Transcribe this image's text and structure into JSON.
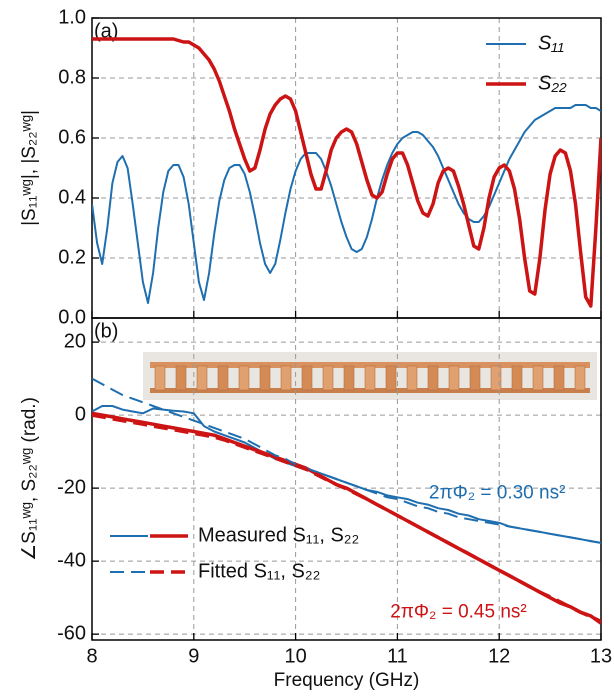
{
  "chart_data": [
    {
      "type": "line",
      "panel_label": "(a)",
      "ylabel": "|S₁₁ʷᵍ|, |S₂₂ʷᵍ|",
      "legend_position": "upper right",
      "grid": true,
      "x": [
        8.0,
        8.05,
        8.1,
        8.15,
        8.2,
        8.25,
        8.3,
        8.35,
        8.4,
        8.45,
        8.5,
        8.55,
        8.6,
        8.65,
        8.7,
        8.75,
        8.8,
        8.85,
        8.9,
        8.95,
        9.0,
        9.05,
        9.1,
        9.15,
        9.2,
        9.25,
        9.3,
        9.35,
        9.4,
        9.45,
        9.5,
        9.55,
        9.6,
        9.65,
        9.7,
        9.75,
        9.8,
        9.85,
        9.9,
        9.95,
        10.0,
        10.05,
        10.1,
        10.15,
        10.2,
        10.25,
        10.3,
        10.35,
        10.4,
        10.45,
        10.5,
        10.55,
        10.6,
        10.65,
        10.7,
        10.75,
        10.8,
        10.85,
        10.9,
        10.95,
        11.0,
        11.05,
        11.1,
        11.15,
        11.2,
        11.25,
        11.3,
        11.35,
        11.4,
        11.45,
        11.5,
        11.55,
        11.6,
        11.65,
        11.7,
        11.75,
        11.8,
        11.85,
        11.9,
        11.95,
        12.0,
        12.05,
        12.1,
        12.15,
        12.2,
        12.25,
        12.3,
        12.35,
        12.4,
        12.45,
        12.5,
        12.55,
        12.6,
        12.65,
        12.7,
        12.75,
        12.8,
        12.85,
        12.9,
        12.95,
        13.0
      ],
      "series": [
        {
          "name": "S₁₁",
          "color": "#1f6fb0",
          "width": 2,
          "dash": "solid",
          "values": [
            0.38,
            0.25,
            0.18,
            0.3,
            0.45,
            0.52,
            0.54,
            0.5,
            0.38,
            0.25,
            0.12,
            0.05,
            0.15,
            0.3,
            0.42,
            0.49,
            0.51,
            0.51,
            0.47,
            0.38,
            0.25,
            0.12,
            0.06,
            0.15,
            0.28,
            0.39,
            0.46,
            0.5,
            0.51,
            0.51,
            0.48,
            0.42,
            0.34,
            0.25,
            0.18,
            0.15,
            0.18,
            0.26,
            0.35,
            0.43,
            0.49,
            0.53,
            0.55,
            0.55,
            0.55,
            0.53,
            0.49,
            0.44,
            0.38,
            0.32,
            0.27,
            0.23,
            0.22,
            0.23,
            0.27,
            0.33,
            0.4,
            0.46,
            0.51,
            0.55,
            0.58,
            0.6,
            0.61,
            0.62,
            0.62,
            0.61,
            0.59,
            0.57,
            0.54,
            0.5,
            0.46,
            0.42,
            0.38,
            0.35,
            0.33,
            0.32,
            0.32,
            0.34,
            0.37,
            0.41,
            0.45,
            0.49,
            0.53,
            0.56,
            0.59,
            0.62,
            0.64,
            0.66,
            0.67,
            0.68,
            0.69,
            0.7,
            0.7,
            0.7,
            0.7,
            0.71,
            0.71,
            0.71,
            0.7,
            0.7,
            0.69
          ]
        },
        {
          "name": "S₂₂",
          "color": "#cc1414",
          "width": 3.5,
          "dash": "solid",
          "values": [
            0.93,
            0.93,
            0.93,
            0.93,
            0.93,
            0.93,
            0.93,
            0.93,
            0.93,
            0.93,
            0.93,
            0.93,
            0.93,
            0.93,
            0.93,
            0.93,
            0.93,
            0.925,
            0.92,
            0.92,
            0.91,
            0.9,
            0.88,
            0.86,
            0.83,
            0.79,
            0.74,
            0.69,
            0.63,
            0.58,
            0.53,
            0.49,
            0.5,
            0.56,
            0.63,
            0.68,
            0.71,
            0.73,
            0.74,
            0.73,
            0.69,
            0.62,
            0.55,
            0.48,
            0.43,
            0.43,
            0.49,
            0.56,
            0.6,
            0.62,
            0.63,
            0.62,
            0.58,
            0.52,
            0.46,
            0.41,
            0.4,
            0.42,
            0.48,
            0.53,
            0.55,
            0.55,
            0.51,
            0.45,
            0.39,
            0.35,
            0.34,
            0.38,
            0.45,
            0.49,
            0.5,
            0.49,
            0.44,
            0.38,
            0.31,
            0.24,
            0.23,
            0.3,
            0.4,
            0.47,
            0.5,
            0.51,
            0.49,
            0.43,
            0.33,
            0.2,
            0.09,
            0.08,
            0.2,
            0.36,
            0.48,
            0.54,
            0.56,
            0.55,
            0.49,
            0.38,
            0.22,
            0.07,
            0.04,
            0.3,
            0.6
          ]
        }
      ],
      "xlim": [
        8,
        13
      ],
      "xticks": [
        8,
        9,
        10,
        11,
        12,
        13
      ],
      "ylim": [
        0,
        1
      ],
      "yticks": [
        {
          "value": 0,
          "label": "0.0"
        },
        0.2,
        0.4,
        0.6,
        0.8,
        {
          "value": 1,
          "label": "1.0"
        }
      ]
    },
    {
      "type": "line",
      "panel_label": "(b)",
      "ylabel": "∠S₁₁ʷᵍ, S₂₂ʷᵍ (rad.)",
      "xlabel": "Frequency (GHz)",
      "legend_position": "lower left",
      "grid": true,
      "legend": [
        {
          "text": "Measured S₁₁, S₂₂",
          "dash": "solid"
        },
        {
          "text": "Fitted S₁₁, S₂₂",
          "dash": "dashed"
        }
      ],
      "annotations": [
        {
          "text": "2πΦ₂ = 0.30 ns²",
          "color": "#1f6fb0",
          "x": 11.98,
          "y": -21.5
        },
        {
          "text": "2πΦ₂ = 0.45 ns²",
          "color": "#cc1414",
          "x": 11.6,
          "y": -54
        }
      ],
      "x": [
        8.0,
        8.1,
        8.2,
        8.3,
        8.4,
        8.5,
        8.6,
        8.7,
        8.8,
        8.9,
        9.0,
        9.1,
        9.2,
        9.3,
        9.4,
        9.5,
        9.6,
        9.7,
        9.8,
        9.9,
        10.0,
        10.1,
        10.2,
        10.3,
        10.4,
        10.5,
        10.6,
        10.7,
        10.8,
        10.9,
        11.0,
        11.1,
        11.2,
        11.3,
        11.4,
        11.5,
        11.6,
        11.7,
        11.8,
        11.9,
        12.0,
        12.1,
        12.2,
        12.3,
        12.4,
        12.5,
        12.6,
        12.7,
        12.8,
        12.9,
        13.0
      ],
      "series": [
        {
          "color": "#1f6fb0",
          "width": 2,
          "dash": "solid",
          "values": [
            1,
            2.5,
            2.5,
            1.5,
            1,
            0.5,
            1.8,
            1.5,
            1.2,
            1,
            0.5,
            -3,
            -4.5,
            -5.5,
            -6.5,
            -7.5,
            -9,
            -10.5,
            -12,
            -13,
            -14,
            -15,
            -15.5,
            -16.5,
            -17.5,
            -18.5,
            -19.5,
            -20.5,
            -21,
            -22,
            -22.5,
            -23,
            -24,
            -24.5,
            -25.5,
            -26,
            -27,
            -27.5,
            -28.5,
            -29,
            -29.5,
            -30.5,
            -31,
            -31.5,
            -32,
            -32.5,
            -33,
            -33.5,
            -34,
            -34.5,
            -35
          ]
        },
        {
          "color": "#cc1414",
          "width": 3.5,
          "dash": "solid",
          "values": [
            0.5,
            0,
            -0.5,
            -1,
            -1.5,
            -2,
            -2.5,
            -3,
            -3.5,
            -4,
            -4.5,
            -5,
            -5.5,
            -6.5,
            -7.5,
            -8.5,
            -9.5,
            -10.5,
            -11.5,
            -12.5,
            -13.5,
            -14.5,
            -16,
            -17.5,
            -19,
            -20,
            -21.5,
            -23,
            -24.5,
            -26,
            -27.5,
            -29,
            -30.5,
            -32,
            -33.5,
            -35,
            -36.5,
            -38,
            -39.5,
            -41,
            -42.5,
            -44,
            -45.5,
            -47,
            -48.5,
            -50,
            -51.5,
            -52.5,
            -54,
            -55,
            -57
          ]
        },
        {
          "color": "#1f6fb0",
          "width": 2,
          "dash": "dashed",
          "values": [
            10,
            8.5,
            7,
            5.5,
            4.5,
            3.5,
            2.5,
            1.5,
            0.5,
            -0.5,
            -1.5,
            -2.5,
            -3.5,
            -4.5,
            -5.5,
            -6.5,
            -8,
            -9.5,
            -11,
            -12,
            -13.5,
            -14.5,
            -15.5,
            -16.5,
            -17.5,
            -18.5,
            -19.5,
            -20.5,
            -21.5,
            -22.5,
            -23,
            -24,
            -25,
            -25.5,
            -26.5,
            -27,
            -28,
            -28.5,
            -29,
            -29.5,
            -30,
            -30.5,
            -31,
            -31.5,
            -32,
            -32.5,
            -33,
            -33.5,
            -34,
            -34.5,
            -35
          ]
        },
        {
          "color": "#cc1414",
          "width": 3.5,
          "dash": "dashed",
          "values": [
            0,
            -0.5,
            -1,
            -1.5,
            -2,
            -2.5,
            -3,
            -3.5,
            -4,
            -4.5,
            -5,
            -5.5,
            -6,
            -6.8,
            -7.8,
            -8.8,
            -9.8,
            -10.8,
            -11.8,
            -12.8,
            -13.8,
            -14.8,
            -16.2,
            -17.6,
            -19,
            -20.2,
            -21.6,
            -23,
            -24.5,
            -26,
            -27.5,
            -29,
            -30.5,
            -32,
            -33.5,
            -35,
            -36.5,
            -38,
            -39.5,
            -41,
            -42.5,
            -44,
            -45.5,
            -47,
            -48.5,
            -49.8,
            -51.2,
            -52.6,
            -54,
            -55.2,
            -56.5
          ]
        }
      ],
      "xlim": [
        8,
        13
      ],
      "xticks": [
        8,
        9,
        10,
        11,
        12,
        13
      ],
      "ylim": [
        -61.6,
        26.6
      ],
      "yticks": [
        -60,
        -40,
        -20,
        0,
        20
      ]
    }
  ]
}
